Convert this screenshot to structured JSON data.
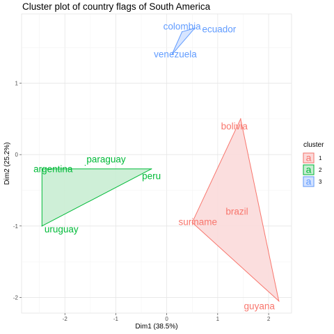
{
  "chart_data": {
    "type": "scatter",
    "title": "Cluster plot of country flags of South America",
    "xlabel": "Dim1 (38.5%)",
    "ylabel": "Dim2 (25.2%)",
    "xlim": [
      -2.85,
      2.45
    ],
    "ylim": [
      -2.22,
      1.97
    ],
    "xticks": [
      -2,
      -1,
      0,
      1,
      2
    ],
    "yticks": [
      -2,
      -1,
      0,
      1
    ],
    "xtick_labels": [
      "-2",
      "-1",
      "0",
      "1",
      "2"
    ],
    "ytick_labels": [
      "-2",
      "-1",
      "0",
      "1"
    ],
    "grid": true,
    "legend": {
      "title": "cluster",
      "position": "right",
      "key_letter": "a"
    },
    "clusters": [
      {
        "name": "1",
        "color": "#F8766D",
        "fill": "#FBDADA",
        "points": [
          {
            "label": "bolivia",
            "x": 1.45,
            "y": 0.5
          },
          {
            "label": "brazil",
            "x": 1.35,
            "y": -0.8
          },
          {
            "label": "suriname",
            "x": 0.5,
            "y": -0.95
          },
          {
            "label": "guyana",
            "x": 2.2,
            "y": -2.05
          }
        ],
        "hull": [
          "bolivia",
          "guyana",
          "suriname"
        ]
      },
      {
        "name": "2",
        "color": "#00BA38",
        "fill": "#C9EDD3",
        "points": [
          {
            "label": "paraguay",
            "x": -1.6,
            "y": -0.15
          },
          {
            "label": "argentina",
            "x": -2.45,
            "y": -0.2
          },
          {
            "label": "peru",
            "x": -0.3,
            "y": -0.2
          },
          {
            "label": "uruguay",
            "x": -2.45,
            "y": -1.0
          }
        ],
        "hull": [
          "argentina",
          "peru",
          "uruguay"
        ]
      },
      {
        "name": "3",
        "color": "#619CFF",
        "fill": "#D3E2FF",
        "points": [
          {
            "label": "colombia",
            "x": 0.3,
            "y": 1.72
          },
          {
            "label": "ecuador",
            "x": 0.55,
            "y": 1.77
          },
          {
            "label": "venezuela",
            "x": 0.1,
            "y": 1.4
          }
        ],
        "hull": [
          "colombia",
          "ecuador",
          "venezuela"
        ]
      }
    ]
  }
}
